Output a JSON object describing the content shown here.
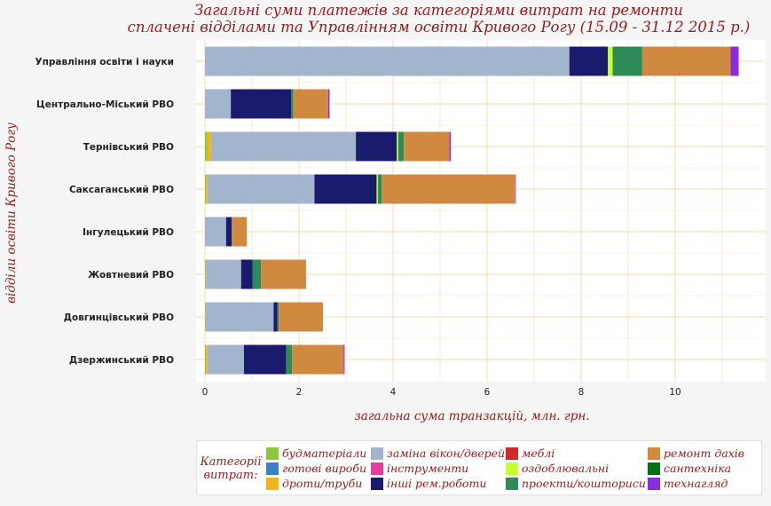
{
  "title": {
    "line1": "Загальні суми платежів за категоріями витрат на ремонти",
    "line2": "сплачені відділами та Управлінням освіти Кривого Рогу (15.09 - 31.12 2015 р.)"
  },
  "legend": {
    "title_line1": "Категорії",
    "title_line2": "витрат:"
  },
  "colors": {
    "background": "#f5f5f5",
    "plot_background": "#ffffff",
    "grid": "#f3d9a8",
    "title_text": "#9b1b1b"
  },
  "chart_data": {
    "type": "bar",
    "orientation": "horizontal",
    "stacked": true,
    "title": "Загальні суми платежів за категоріями витрат на ремонти сплачені відділами та Управлінням освіти Кривого Рогу (15.09 - 31.12 2015 р.)",
    "xlabel": "загальна сума транзакцій, млн. грн.",
    "ylabel": "відділи освіти Кривого Рогу",
    "xlim": [
      0,
      11.6
    ],
    "xticks": [
      0,
      2,
      4,
      6,
      8,
      10
    ],
    "grid": true,
    "legend_position": "bottom",
    "categories": [
      "Управління освіти і науки",
      "Центрально-Міський РВО",
      "Тернівський РВО",
      "Саксаганський РВО",
      "Інгулецький РВО",
      "Жовтневий РВО",
      "Довгинцівський РВО",
      "Дзержинський РВО"
    ],
    "series": [
      {
        "name": "будматеріали",
        "color": "#8dc63f",
        "values": [
          0,
          0,
          0.05,
          0.02,
          0,
          0.01,
          0,
          0.02
        ]
      },
      {
        "name": "готові вироби",
        "color": "#3b82c4",
        "values": [
          0,
          0,
          0,
          0,
          0,
          0,
          0,
          0
        ]
      },
      {
        "name": "дроти/труби",
        "color": "#f2b418",
        "values": [
          0,
          0,
          0.08,
          0.03,
          0,
          0.01,
          0.01,
          0.03
        ]
      },
      {
        "name": "заміна вікон/дверей",
        "color": "#a3b4cd",
        "values": [
          7.75,
          0.55,
          3.08,
          2.28,
          0.45,
          0.75,
          1.45,
          0.78
        ]
      },
      {
        "name": "інструменти",
        "color": "#e43f9e",
        "values": [
          0,
          0,
          0,
          0,
          0,
          0,
          0,
          0
        ]
      },
      {
        "name": "інші рем.роботи",
        "color": "#1b1b6e",
        "values": [
          0.82,
          1.28,
          0.87,
          1.32,
          0.12,
          0.24,
          0.08,
          0.9
        ]
      },
      {
        "name": "меблі",
        "color": "#cf2a2a",
        "values": [
          0,
          0,
          0,
          0,
          0,
          0,
          0,
          0
        ]
      },
      {
        "name": "оздоблювальні",
        "color": "#c6ff33",
        "values": [
          0.1,
          0,
          0.03,
          0.03,
          0,
          0,
          0,
          0
        ]
      },
      {
        "name": "проекти/кошториси",
        "color": "#2e8b57",
        "values": [
          0.63,
          0.05,
          0.12,
          0.08,
          0.01,
          0.18,
          0.03,
          0.12
        ]
      },
      {
        "name": "ремонт дахів",
        "color": "#d08a40",
        "values": [
          1.88,
          0.74,
          0.97,
          2.84,
          0.31,
          0.96,
          0.94,
          1.1
        ]
      },
      {
        "name": "сантехніка",
        "color": "#0a6e12",
        "values": [
          0,
          0,
          0,
          0,
          0,
          0,
          0,
          0
        ]
      },
      {
        "name": "технагляд",
        "color": "#8a2be2",
        "values": [
          0.17,
          0.03,
          0.03,
          0.01,
          0,
          0,
          0,
          0.02
        ]
      }
    ]
  }
}
